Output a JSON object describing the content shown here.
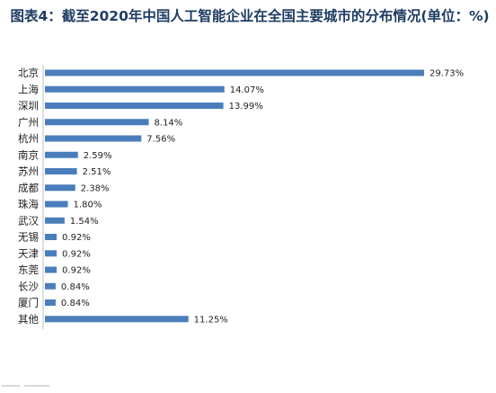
{
  "title": "图表4：截至2020年中国人工智能企业在全国主要城市的分布情况(单位：%)",
  "chart_data": {
    "type": "bar",
    "orientation": "horizontal",
    "title": "图表4：截至2020年中国人工智能企业在全国主要城市的分布情况(单位：%)",
    "categories": [
      "北京",
      "上海",
      "深圳",
      "广州",
      "杭州",
      "南京",
      "苏州",
      "成都",
      "珠海",
      "武汉",
      "无锡",
      "天津",
      "东莞",
      "长沙",
      "厦门",
      "其他"
    ],
    "values": [
      29.73,
      14.07,
      13.99,
      8.14,
      7.56,
      2.59,
      2.51,
      2.38,
      1.8,
      1.54,
      0.92,
      0.92,
      0.92,
      0.84,
      0.84,
      11.25
    ],
    "value_labels": [
      "29.73%",
      "14.07%",
      "13.99%",
      "8.14%",
      "7.56%",
      "2.59%",
      "2.51%",
      "2.38%",
      "1.80%",
      "1.54%",
      "0.92%",
      "0.92%",
      "0.92%",
      "0.84%",
      "0.84%",
      "11.25%"
    ],
    "xlim": [
      0,
      29.73
    ],
    "grid": false,
    "legend": "none",
    "bar_color": "#4a7ebb"
  }
}
